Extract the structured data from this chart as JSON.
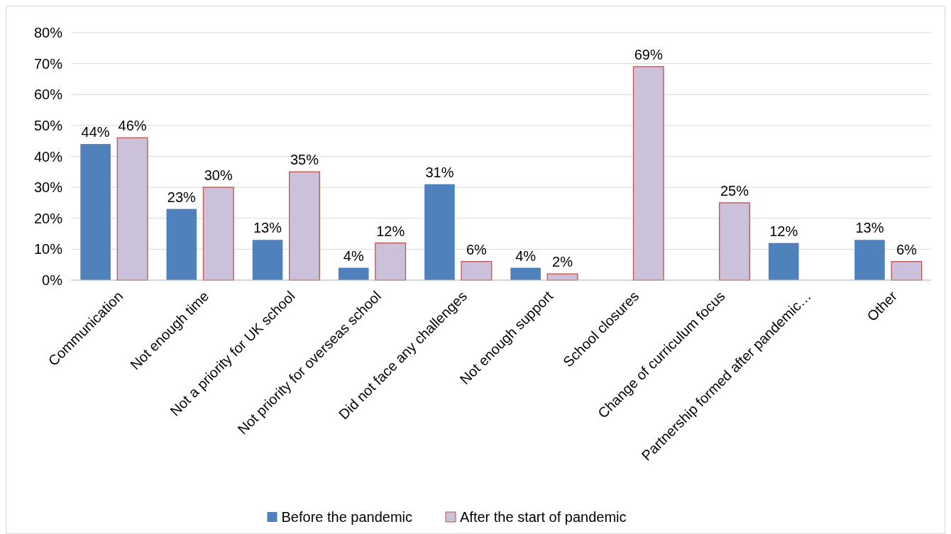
{
  "chart_data": {
    "type": "bar",
    "categories": [
      "Communication",
      "Not enough time",
      "Not a priority for UK school",
      "Not priority for overseas school",
      "Did not face any challenges",
      "Not enough support",
      "School closures",
      "Change of curriculum focus",
      "Partnership formed after pandemic…",
      "Other"
    ],
    "series": [
      {
        "name": "Before the pandemic",
        "color": "#4f81bd",
        "values": [
          44,
          23,
          13,
          4,
          31,
          4,
          null,
          null,
          12,
          13
        ],
        "value_labels": [
          "44%",
          "23%",
          "13%",
          "4%",
          "31%",
          "4%",
          null,
          null,
          "12%",
          "13%"
        ]
      },
      {
        "name": "After the start of pandemic",
        "color": "#ccc1da",
        "values": [
          46,
          30,
          35,
          12,
          6,
          2,
          69,
          25,
          null,
          6
        ],
        "value_labels": [
          "46%",
          "30%",
          "35%",
          "12%",
          "6%",
          "2%",
          "69%",
          "25%",
          null,
          "6%"
        ]
      }
    ],
    "ylim": [
      0,
      80
    ],
    "yticks": [
      {
        "value": 0,
        "label": "0%"
      },
      {
        "value": 10,
        "label": "10%"
      },
      {
        "value": 20,
        "label": "20%"
      },
      {
        "value": 30,
        "label": "30%"
      },
      {
        "value": 40,
        "label": "40%"
      },
      {
        "value": 50,
        "label": "50%"
      },
      {
        "value": 60,
        "label": "60%"
      },
      {
        "value": 70,
        "label": "70%"
      },
      {
        "value": 80,
        "label": "80%"
      }
    ],
    "grid": "y",
    "legend": "bottom"
  }
}
